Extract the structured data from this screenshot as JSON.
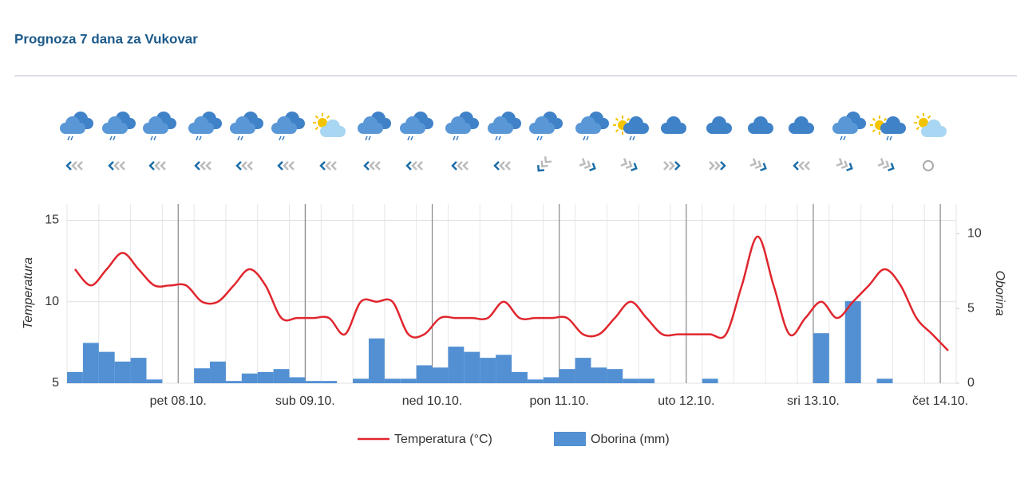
{
  "header": {
    "title": "Prognoza 7 dana za Vukovar"
  },
  "chart_data": {
    "type": "combo",
    "categories": [
      null,
      null,
      null,
      null,
      null,
      null,
      null,
      "pet 08.10.",
      null,
      null,
      null,
      null,
      null,
      null,
      null,
      "sub 09.10.",
      null,
      null,
      null,
      null,
      null,
      null,
      null,
      "ned 10.10.",
      null,
      null,
      null,
      null,
      null,
      null,
      null,
      "pon 11.10.",
      null,
      null,
      null,
      null,
      null,
      null,
      null,
      "uto 12.10.",
      null,
      null,
      null,
      null,
      null,
      null,
      null,
      "sri 13.10.",
      null,
      null,
      null,
      null,
      null,
      null,
      null,
      "čet 14.10."
    ],
    "ylabel": "Temperatura",
    "y2label": "Oborina",
    "ylim": [
      5,
      16
    ],
    "yticks": [
      5,
      10,
      15
    ],
    "y2lim": [
      0,
      12
    ],
    "y2ticks": [
      0,
      5,
      10
    ],
    "grid": true,
    "legend": "bottom",
    "series": [
      {
        "name": "Temperatura (°C)",
        "type": "line",
        "color": "#e0262e",
        "values": [
          12,
          11,
          12,
          13,
          12,
          11,
          11,
          11,
          10,
          10,
          11,
          12,
          11,
          9,
          9,
          9,
          9,
          8,
          10,
          10,
          10,
          8,
          8,
          9,
          9,
          9,
          9,
          10,
          9,
          9,
          9,
          9,
          8,
          8,
          9,
          10,
          9,
          8,
          8,
          8,
          8,
          8,
          11,
          14,
          11,
          8,
          9,
          10,
          9,
          10,
          11,
          12,
          11,
          9,
          8,
          7
        ]
      },
      {
        "name": "Oborina (mm)",
        "type": "bar",
        "axis": "y2",
        "color": "#5290d3",
        "values": [
          0.75,
          2.7,
          2.1,
          1.45,
          1.7,
          0.25,
          0,
          0,
          1.0,
          1.45,
          0.15,
          0.65,
          0.75,
          0.95,
          0.4,
          0.15,
          0.15,
          0,
          0.3,
          3.0,
          0.3,
          0.3,
          1.2,
          1.05,
          2.45,
          2.1,
          1.7,
          1.9,
          0.75,
          0.25,
          0.4,
          0.95,
          1.7,
          1.05,
          0.95,
          0.3,
          0.3,
          0,
          0,
          0,
          0.3,
          0,
          0,
          0,
          0,
          0,
          0,
          3.35,
          0,
          5.5,
          0,
          0.3,
          0,
          0,
          0,
          0
        ]
      }
    ]
  }
}
